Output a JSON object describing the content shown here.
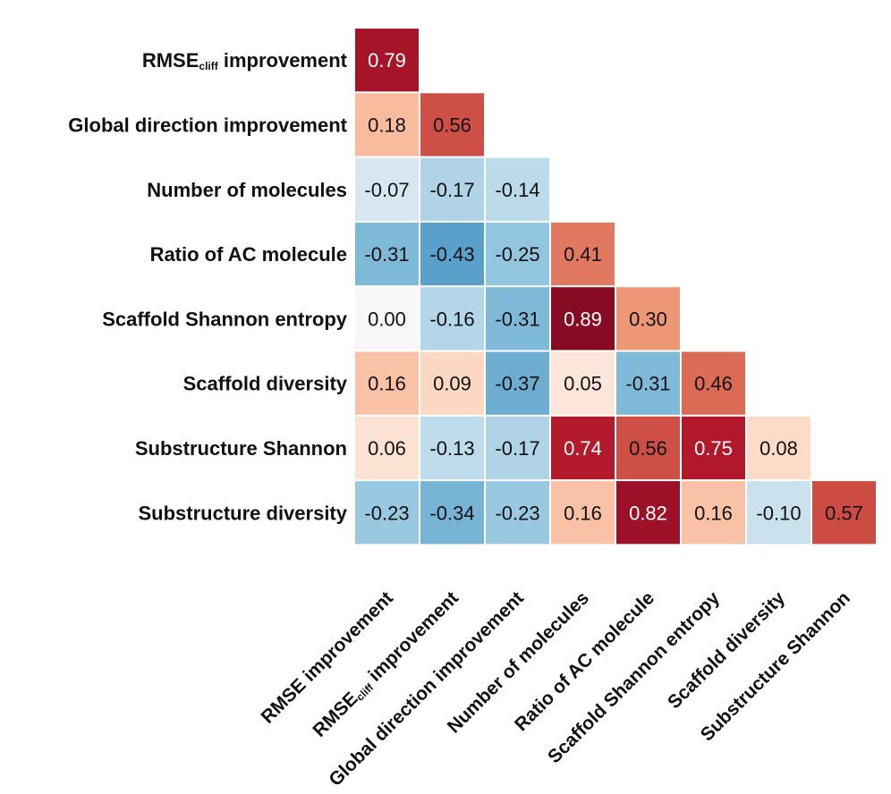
{
  "chart_data": {
    "type": "heatmap",
    "title": "",
    "xlabel": "",
    "ylabel": "",
    "layout": "lower-triangle",
    "row_labels": [
      {
        "main": "RMSE",
        "sub": "cliff",
        "rest": " improvement"
      },
      {
        "main": "Global direction improvement",
        "sub": "",
        "rest": ""
      },
      {
        "main": "Number of molecules",
        "sub": "",
        "rest": ""
      },
      {
        "main": "Ratio of AC molecule",
        "sub": "",
        "rest": ""
      },
      {
        "main": "Scaffold Shannon entropy",
        "sub": "",
        "rest": ""
      },
      {
        "main": "Scaffold diversity",
        "sub": "",
        "rest": ""
      },
      {
        "main": "Substructure Shannon",
        "sub": "",
        "rest": ""
      },
      {
        "main": "Substructure diversity",
        "sub": "",
        "rest": ""
      }
    ],
    "column_labels": [
      {
        "main": "RMSE improvement",
        "sub": "",
        "rest": ""
      },
      {
        "main": "RMSE",
        "sub": "cliff",
        "rest": " improvement"
      },
      {
        "main": "Global direction improvement",
        "sub": "",
        "rest": ""
      },
      {
        "main": "Number of molecules",
        "sub": "",
        "rest": ""
      },
      {
        "main": "Ratio of AC molecule",
        "sub": "",
        "rest": ""
      },
      {
        "main": "Scaffold Shannon entropy",
        "sub": "",
        "rest": ""
      },
      {
        "main": "Scaffold diversity",
        "sub": "",
        "rest": ""
      },
      {
        "main": "Substructure Shannon",
        "sub": "",
        "rest": ""
      }
    ],
    "values": [
      [
        0.79
      ],
      [
        0.18,
        0.56
      ],
      [
        -0.07,
        -0.17,
        -0.14
      ],
      [
        -0.31,
        -0.43,
        -0.25,
        0.41
      ],
      [
        0.0,
        -0.16,
        -0.31,
        0.89,
        0.3
      ],
      [
        0.16,
        0.09,
        -0.37,
        0.05,
        -0.31,
        0.46
      ],
      [
        0.06,
        -0.13,
        -0.17,
        0.74,
        0.56,
        0.75,
        0.08
      ],
      [
        -0.23,
        -0.34,
        -0.23,
        0.16,
        0.82,
        0.16,
        -0.1,
        0.57
      ]
    ],
    "value_format": "0.00",
    "colormap": "RdBu_r",
    "color_range": [
      -1,
      1
    ],
    "colors": {
      "negative_strong": "#2166ac",
      "neutral": "#f7f7f7",
      "positive_strong": "#b2182b"
    }
  }
}
